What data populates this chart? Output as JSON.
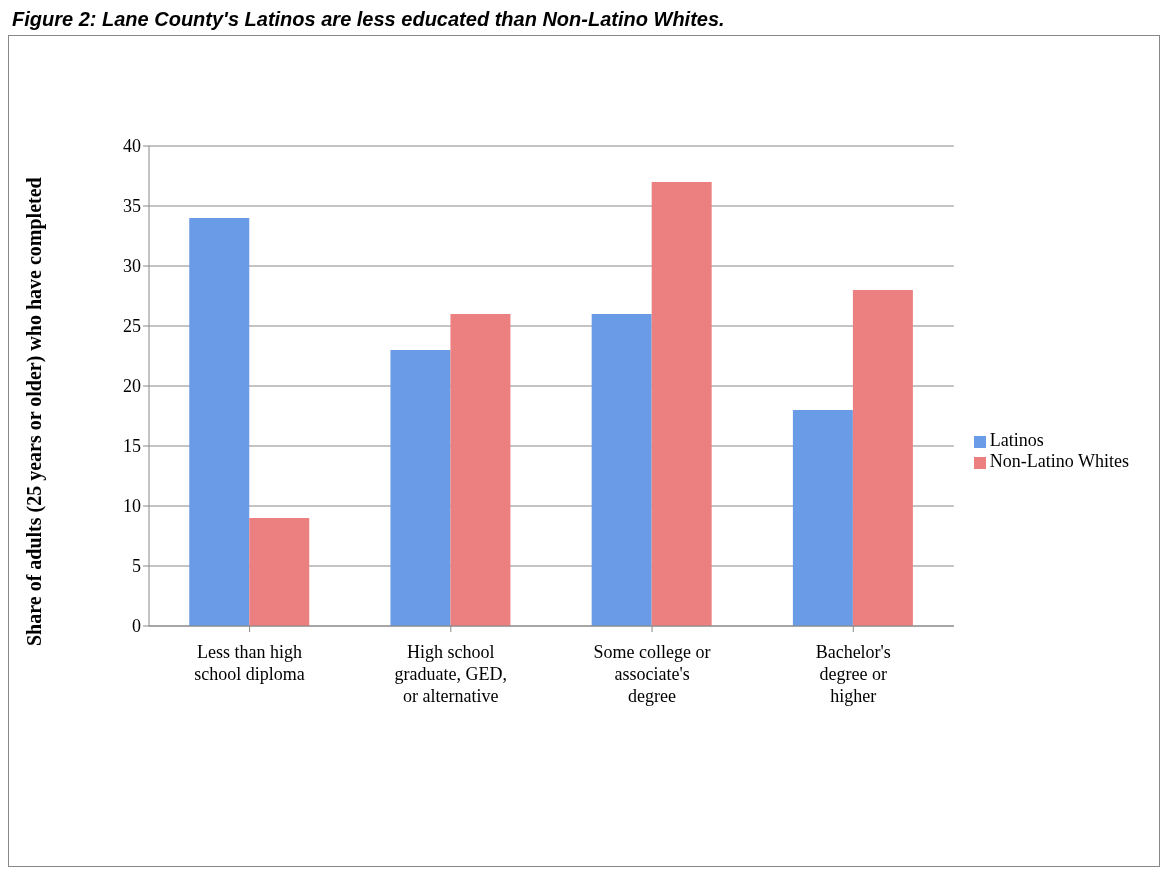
{
  "chart_data": {
    "type": "bar",
    "title": "Figure 2: Lane County's Latinos are less educated than Non-Latino Whites.",
    "ylabel": "Share of adults (25 years or older) who have completed",
    "categories": [
      "Less than high school diploma",
      "High school graduate, GED, or alternative",
      "Some college or associate's degree",
      "Bachelor's degree or higher"
    ],
    "series": [
      {
        "name": "Latinos",
        "color": "#6a9be6",
        "values": [
          34,
          23,
          26,
          18
        ]
      },
      {
        "name": "Non-Latino Whites",
        "color": "#ec8080",
        "values": [
          9,
          26,
          37,
          28
        ]
      }
    ],
    "ylim": [
      0,
      40
    ],
    "yticks": [
      0,
      5,
      10,
      15,
      20,
      25,
      30,
      35,
      40
    ],
    "grid": "y",
    "legend": "right"
  }
}
